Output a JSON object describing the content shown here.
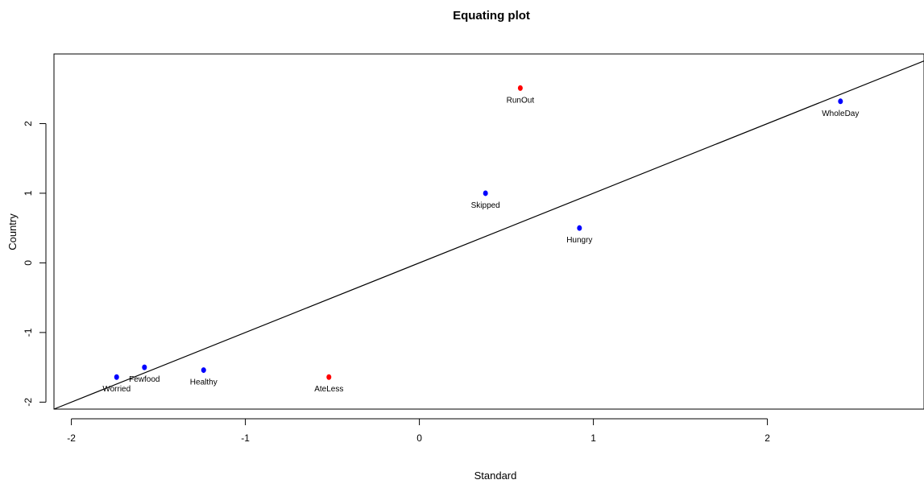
{
  "chart_data": {
    "type": "scatter",
    "title": "Equating plot",
    "xlabel": "Standard",
    "ylabel": "Country",
    "xlim": [
      -2.1,
      2.9
    ],
    "ylim": [
      -2.1,
      3.0
    ],
    "x_ticks": [
      -2,
      -1,
      0,
      1,
      2
    ],
    "y_ticks": [
      -2,
      -1,
      0,
      1,
      2
    ],
    "grid": false,
    "reference_line": {
      "intercept": 0,
      "slope": 1,
      "color": "#000000"
    },
    "colors": {
      "blue": "#0000ff",
      "red": "#ff0000"
    },
    "points": [
      {
        "label": "Worried",
        "x": -1.74,
        "y": -1.64,
        "color": "#0000ff"
      },
      {
        "label": "Fewfood",
        "x": -1.58,
        "y": -1.5,
        "color": "#0000ff"
      },
      {
        "label": "Healthy",
        "x": -1.24,
        "y": -1.54,
        "color": "#0000ff"
      },
      {
        "label": "AteLess",
        "x": -0.52,
        "y": -1.64,
        "color": "#ff0000"
      },
      {
        "label": "Skipped",
        "x": 0.38,
        "y": 1.0,
        "color": "#0000ff"
      },
      {
        "label": "RunOut",
        "x": 0.58,
        "y": 2.51,
        "color": "#ff0000"
      },
      {
        "label": "Hungry",
        "x": 0.92,
        "y": 0.5,
        "color": "#0000ff"
      },
      {
        "label": "WholeDay",
        "x": 2.42,
        "y": 2.32,
        "color": "#0000ff"
      }
    ]
  }
}
